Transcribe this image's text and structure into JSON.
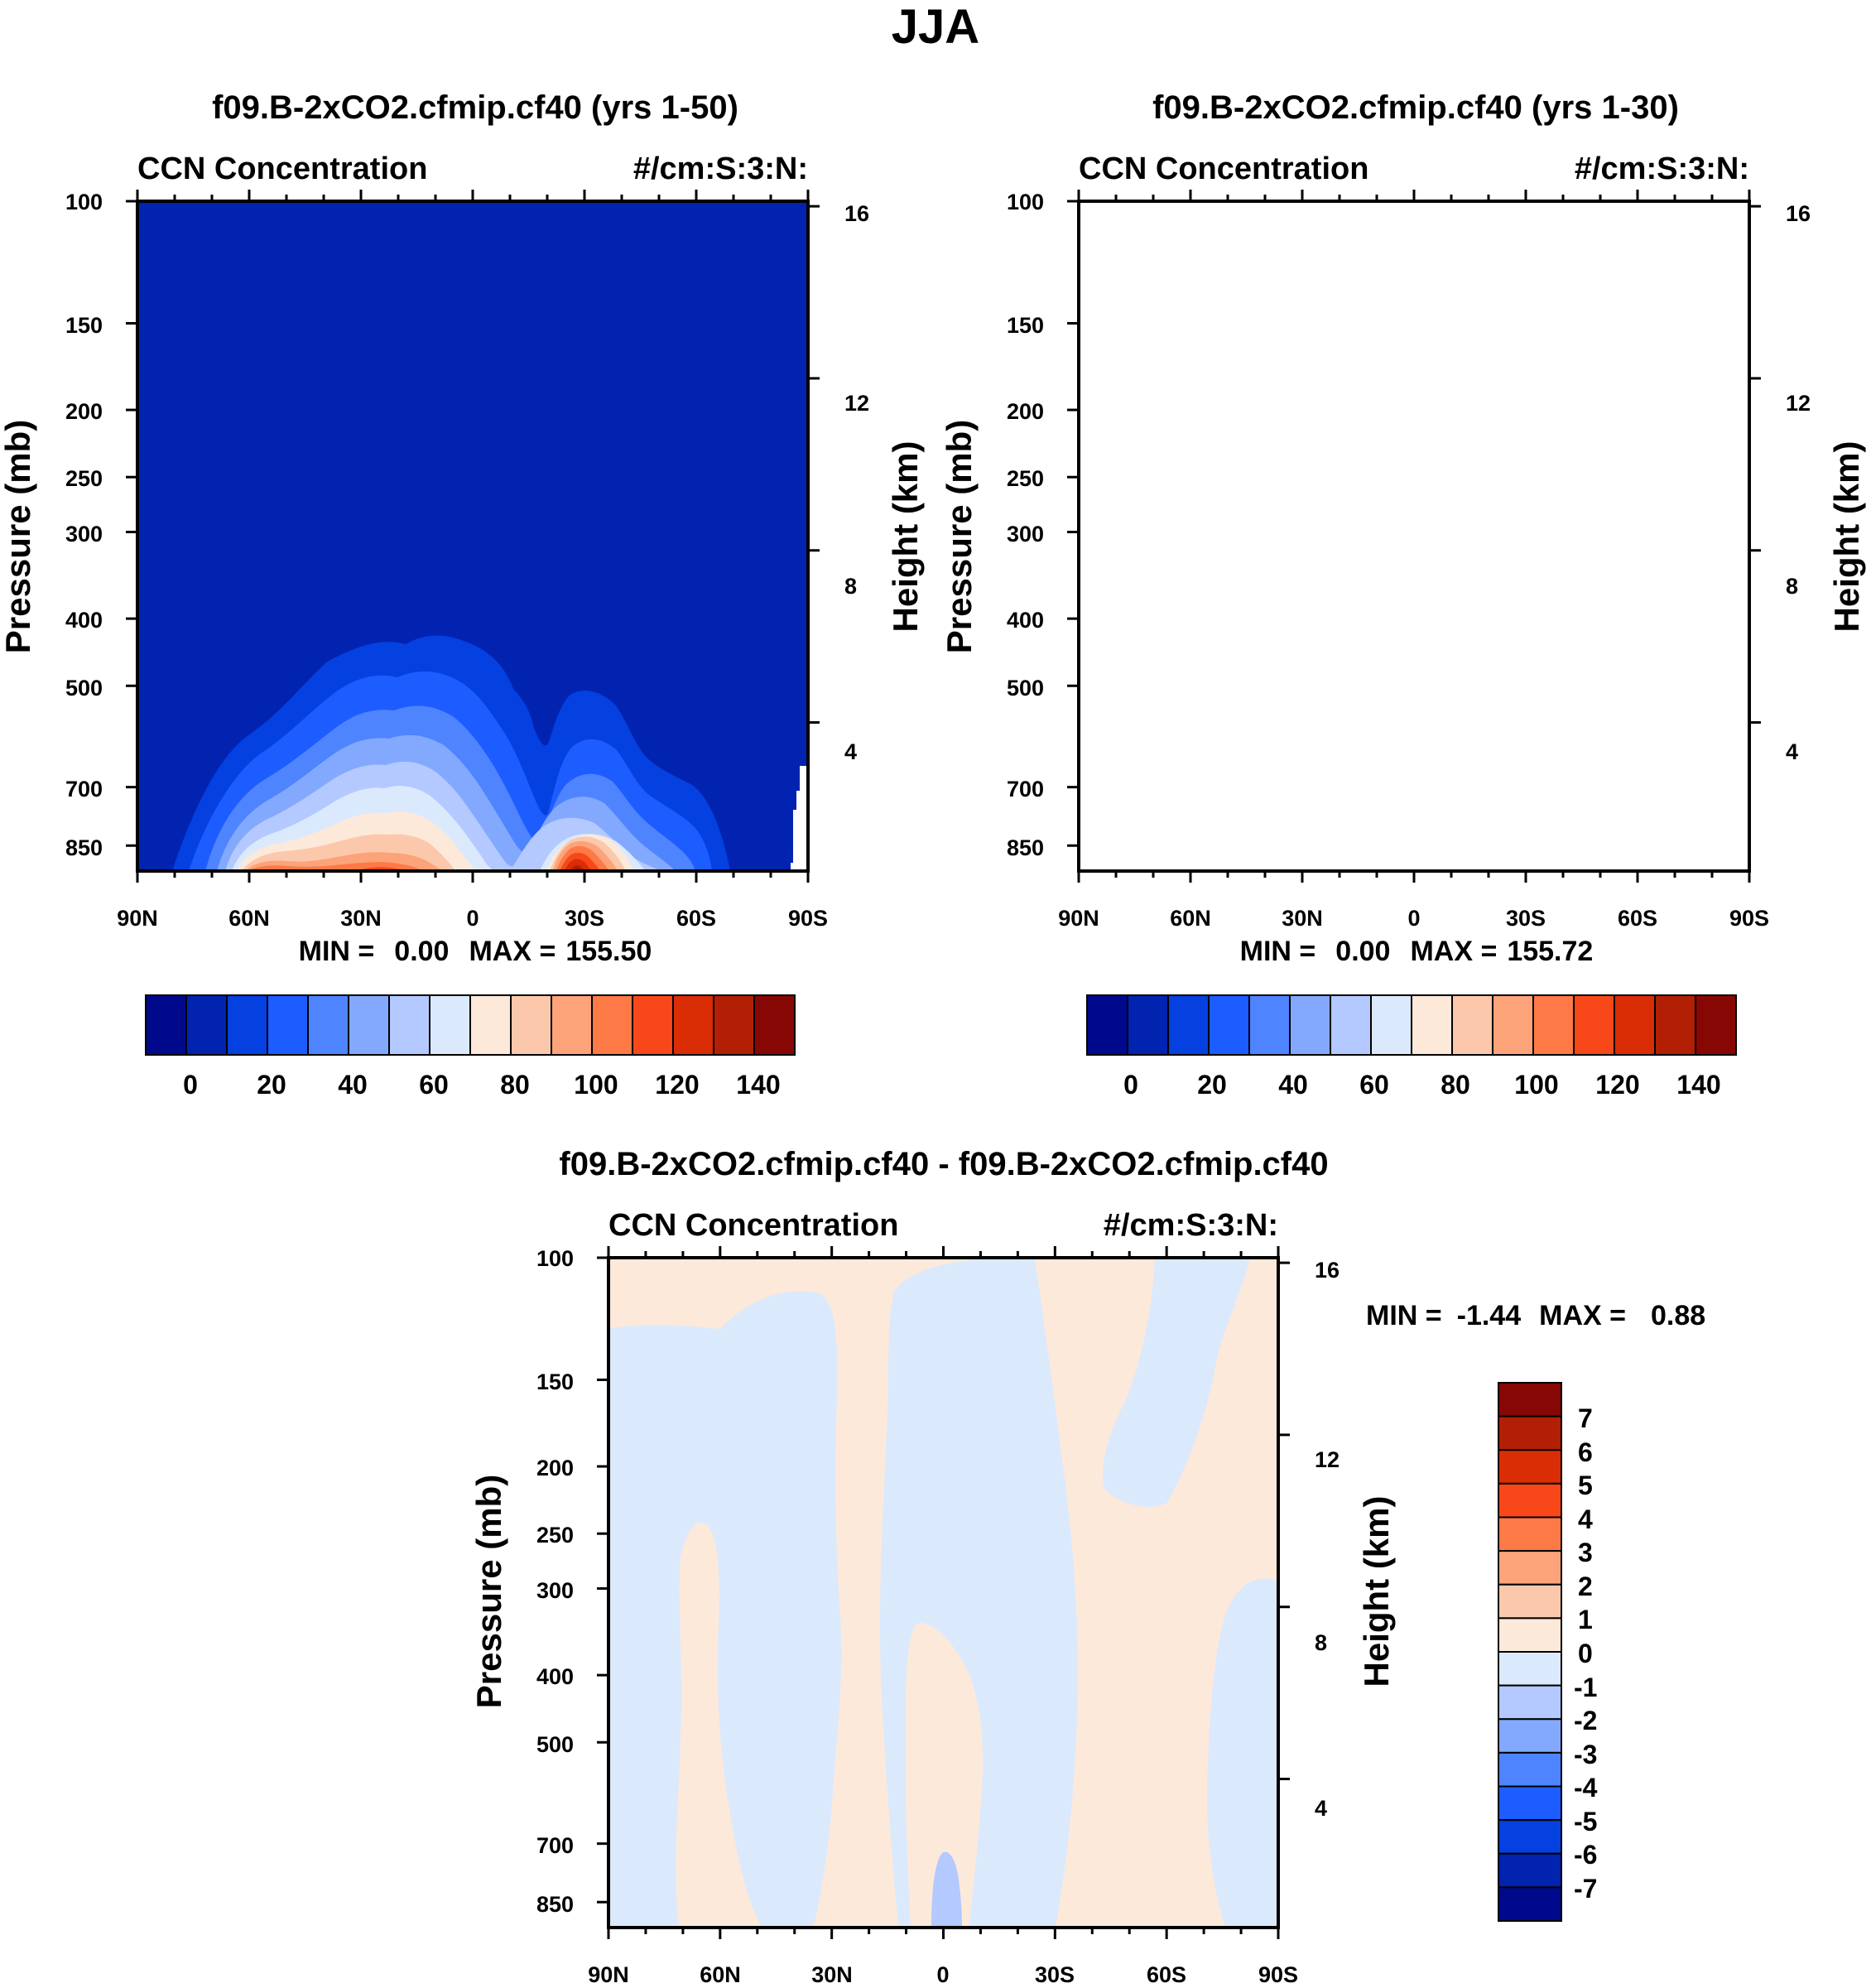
{
  "figure": {
    "season_title": "JJA"
  },
  "colors": {
    "cmap15": [
      "#00098c",
      "#0123b0",
      "#0540e0",
      "#1d5cff",
      "#4f84ff",
      "#83a9ff",
      "#b3c9ff",
      "#dbe9fd",
      "#fde9da",
      "#fcc8ac",
      "#fca37a",
      "#fd7a47",
      "#f8481a",
      "#da2d05",
      "#b21f05",
      "#870705"
    ],
    "cmap16": [
      "#00098c",
      "#0123b0",
      "#0540e0",
      "#1d5cff",
      "#4f84ff",
      "#83a9ff",
      "#b3c9ff",
      "#dbe9fd",
      "#fde9da",
      "#fcc8ac",
      "#fca37a",
      "#fd7a47",
      "#f8481a",
      "#da2d05",
      "#b21f05",
      "#870705"
    ]
  },
  "chart_data": [
    {
      "type": "contour",
      "id": "panel1",
      "title": "f09.B-2xCO2.cfmip.cf40 (yrs 1-50)",
      "left_string": "CCN Concentration",
      "right_string": "#/cm:S:3:N:",
      "ylabel_left": "Pressure (mb)",
      "ylabel_right": "Height (km)",
      "x_ticks": [
        "90N",
        "60N",
        "30N",
        "0",
        "30S",
        "60S",
        "90S"
      ],
      "y_ticks_left": [
        100,
        150,
        200,
        250,
        300,
        400,
        500,
        700,
        850
      ],
      "y_ticks_left_labels": [
        "100",
        "150",
        "200",
        "250",
        "300",
        "400",
        "500",
        "700",
        "850"
      ],
      "y_ticks_right": [
        16,
        12,
        8,
        4
      ],
      "y_ticks_right_labels": [
        "16",
        "12",
        "8",
        "4"
      ],
      "min_label": "MIN =",
      "min_value": "0.00",
      "max_label": "MAX =",
      "max_value": "155.50",
      "min": 0.0,
      "max": 155.5,
      "colorbar": {
        "orientation": "horizontal",
        "levels": [
          0,
          10,
          20,
          30,
          40,
          50,
          60,
          70,
          80,
          90,
          100,
          110,
          120,
          130,
          140
        ],
        "labels": [
          "0",
          "20",
          "40",
          "60",
          "80",
          "100",
          "120",
          "140"
        ]
      }
    },
    {
      "type": "contour",
      "id": "panel2",
      "title": "f09.B-2xCO2.cfmip.cf40 (yrs 1-30)",
      "left_string": "CCN Concentration",
      "right_string": "#/cm:S:3:N:",
      "ylabel_left": "Pressure (mb)",
      "ylabel_right": "Height (km)",
      "x_ticks": [
        "90N",
        "60N",
        "30N",
        "0",
        "30S",
        "60S",
        "90S"
      ],
      "y_ticks_left": [
        100,
        150,
        200,
        250,
        300,
        400,
        500,
        700,
        850
      ],
      "y_ticks_left_labels": [
        "100",
        "150",
        "200",
        "250",
        "300",
        "400",
        "500",
        "700",
        "850"
      ],
      "y_ticks_right": [
        16,
        12,
        8,
        4
      ],
      "y_ticks_right_labels": [
        "16",
        "12",
        "8",
        "4"
      ],
      "min_label": "MIN =",
      "min_value": "0.00",
      "max_label": "MAX =",
      "max_value": "155.72",
      "min": 0.0,
      "max": 155.72,
      "colorbar": {
        "orientation": "horizontal",
        "levels": [
          0,
          10,
          20,
          30,
          40,
          50,
          60,
          70,
          80,
          90,
          100,
          110,
          120,
          130,
          140
        ],
        "labels": [
          "0",
          "20",
          "40",
          "60",
          "80",
          "100",
          "120",
          "140"
        ]
      }
    },
    {
      "type": "contour",
      "id": "panel3",
      "title": "f09.B-2xCO2.cfmip.cf40 - f09.B-2xCO2.cfmip.cf40",
      "left_string": "CCN Concentration",
      "right_string": "#/cm:S:3:N:",
      "ylabel_left": "Pressure (mb)",
      "ylabel_right": "Height (km)",
      "x_ticks": [
        "90N",
        "60N",
        "30N",
        "0",
        "30S",
        "60S",
        "90S"
      ],
      "y_ticks_left": [
        100,
        150,
        200,
        250,
        300,
        400,
        500,
        700,
        850
      ],
      "y_ticks_left_labels": [
        "100",
        "150",
        "200",
        "250",
        "300",
        "400",
        "500",
        "700",
        "850"
      ],
      "y_ticks_right": [
        16,
        12,
        8,
        4
      ],
      "y_ticks_right_labels": [
        "16",
        "12",
        "8",
        "4"
      ],
      "min_label": "MIN =",
      "min_value": "-1.44",
      "max_label": "MAX =",
      "max_value": "0.88",
      "min": -1.44,
      "max": 0.88,
      "colorbar": {
        "orientation": "vertical",
        "levels": [
          -7,
          -6,
          -5,
          -4,
          -3,
          -2,
          -1,
          0,
          1,
          2,
          3,
          4,
          5,
          6,
          7
        ],
        "labels": [
          "7",
          "6",
          "5",
          "4",
          "3",
          "2",
          "1",
          "0",
          "-1",
          "-2",
          "-3",
          "-4",
          "-5",
          "-6",
          "-7"
        ]
      }
    }
  ]
}
